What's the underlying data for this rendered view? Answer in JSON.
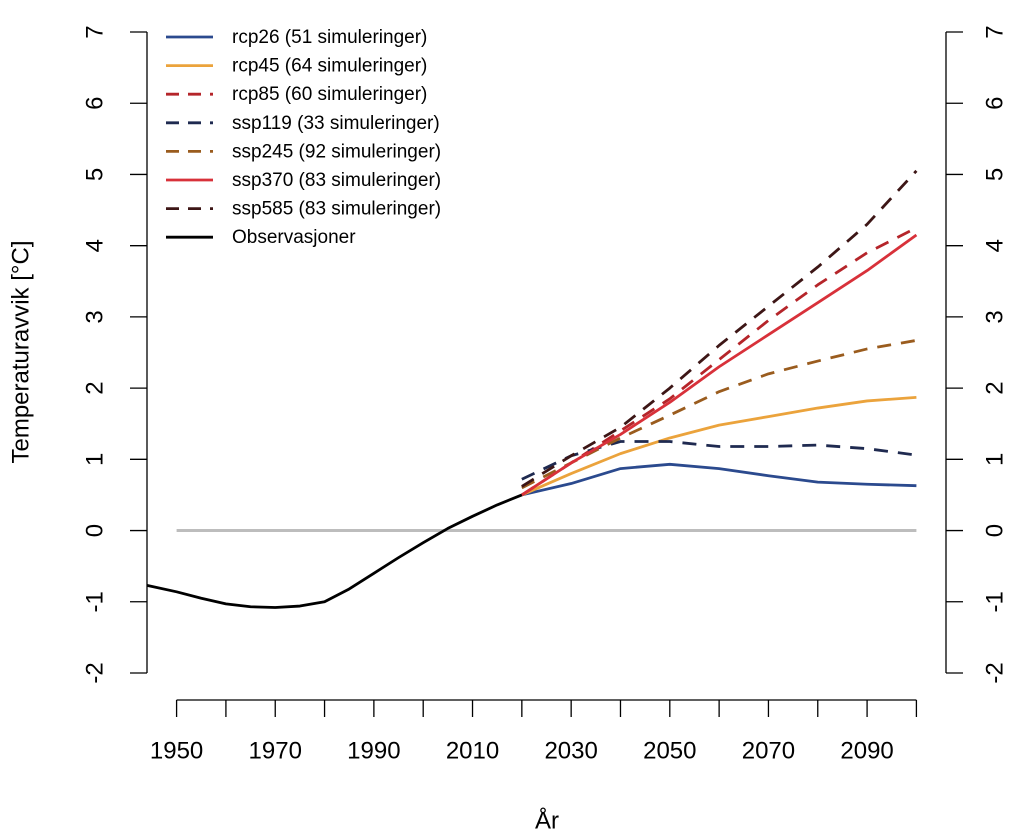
{
  "chart_data": {
    "type": "line",
    "x_label": "År",
    "y_label": "Temperaturavvik [°C]",
    "xlim": [
      1944,
      2106
    ],
    "ylim": [
      -2,
      7
    ],
    "xticks": [
      1950,
      1970,
      1990,
      2010,
      2030,
      2050,
      2070,
      2090
    ],
    "xminor_ticks": [
      1960,
      1980,
      2000,
      2020,
      2040,
      2060,
      2080,
      2100
    ],
    "yticks": [
      -2,
      -1,
      0,
      1,
      2,
      3,
      4,
      5,
      6,
      7
    ],
    "right_axis": true,
    "hline": {
      "value": 0,
      "color": "#bdbdbd"
    },
    "legend": "top-left",
    "series": [
      {
        "name": "rcp26 (51 simuleringer)",
        "color": "#2b4a8e",
        "dashed": false,
        "x": [
          2020,
          2030,
          2040,
          2050,
          2060,
          2070,
          2080,
          2090,
          2100
        ],
        "values": [
          0.5,
          0.66,
          0.87,
          0.93,
          0.87,
          0.77,
          0.68,
          0.65,
          0.63
        ]
      },
      {
        "name": "rcp45 (64 simuleringer)",
        "color": "#eba33c",
        "dashed": false,
        "x": [
          2020,
          2030,
          2040,
          2050,
          2060,
          2070,
          2080,
          2090,
          2100
        ],
        "values": [
          0.5,
          0.8,
          1.08,
          1.3,
          1.48,
          1.6,
          1.72,
          1.82,
          1.87
        ]
      },
      {
        "name": "rcp85 (60 simuleringer)",
        "color": "#b5252a",
        "dashed": true,
        "x": [
          2020,
          2030,
          2040,
          2050,
          2060,
          2070,
          2080,
          2090,
          2100
        ],
        "values": [
          0.5,
          0.95,
          1.4,
          1.85,
          2.4,
          2.95,
          3.45,
          3.9,
          4.25
        ]
      },
      {
        "name": "ssp119 (33 simuleringer)",
        "color": "#1f2a50",
        "dashed": true,
        "x": [
          2020,
          2030,
          2040,
          2050,
          2060,
          2070,
          2080,
          2090,
          2100
        ],
        "values": [
          0.72,
          1.05,
          1.25,
          1.25,
          1.18,
          1.18,
          1.2,
          1.15,
          1.06
        ]
      },
      {
        "name": "ssp245 (92 simuleringer)",
        "color": "#9a5c1e",
        "dashed": true,
        "x": [
          2020,
          2030,
          2040,
          2050,
          2060,
          2070,
          2080,
          2090,
          2100
        ],
        "values": [
          0.6,
          0.95,
          1.3,
          1.62,
          1.95,
          2.2,
          2.38,
          2.55,
          2.67
        ]
      },
      {
        "name": "ssp370 (83 simuleringer)",
        "color": "#d8313a",
        "dashed": false,
        "x": [
          2020,
          2030,
          2040,
          2050,
          2060,
          2070,
          2080,
          2090,
          2100
        ],
        "values": [
          0.5,
          0.95,
          1.35,
          1.8,
          2.3,
          2.75,
          3.2,
          3.65,
          4.15
        ]
      },
      {
        "name": "ssp585 (83 simuleringer)",
        "color": "#3d1616",
        "dashed": true,
        "x": [
          2020,
          2030,
          2040,
          2050,
          2060,
          2070,
          2080,
          2090,
          2100
        ],
        "values": [
          0.62,
          1.05,
          1.45,
          2.0,
          2.6,
          3.15,
          3.7,
          4.3,
          5.05
        ]
      },
      {
        "name": "Observasjoner",
        "color": "#000000",
        "dashed": false,
        "x": [
          1944,
          1950,
          1955,
          1960,
          1965,
          1970,
          1975,
          1980,
          1985,
          1990,
          1995,
          2000,
          2005,
          2010,
          2015,
          2020
        ],
        "values": [
          -0.77,
          -0.86,
          -0.95,
          -1.03,
          -1.07,
          -1.08,
          -1.06,
          -1.0,
          -0.82,
          -0.6,
          -0.38,
          -0.17,
          0.03,
          0.2,
          0.36,
          0.5
        ]
      }
    ]
  }
}
